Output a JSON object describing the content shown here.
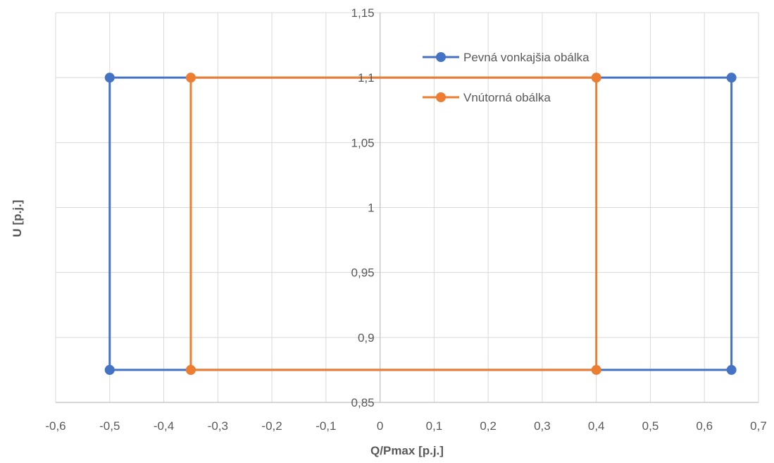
{
  "chart_data": {
    "type": "scatter",
    "title": "",
    "xlabel": "Q/Pmax [p.j.]",
    "ylabel": "U [p.j.]",
    "xlim": [
      -0.6,
      0.7
    ],
    "ylim": [
      0.85,
      1.15
    ],
    "x_ticks": [
      -0.6,
      -0.5,
      -0.4,
      -0.3,
      -0.2,
      -0.1,
      0,
      0.1,
      0.2,
      0.3,
      0.4,
      0.5,
      0.6,
      0.7
    ],
    "x_tick_labels": [
      "-0,6",
      "-0,5",
      "-0,4",
      "-0,3",
      "-0,2",
      "-0,1",
      "0",
      "0,1",
      "0,2",
      "0,3",
      "0,4",
      "0,5",
      "0,6",
      "0,7"
    ],
    "y_ticks": [
      0.85,
      0.9,
      0.95,
      1.0,
      1.05,
      1.1,
      1.15
    ],
    "y_tick_labels": [
      "0,85",
      "0,9",
      "0,95",
      "1",
      "1,05",
      "1,1",
      "1,15"
    ],
    "grid": true,
    "legend_position": "top-right",
    "series": [
      {
        "name": "Pevná vonkajšia obálka",
        "color": "#4472C4",
        "points": [
          [
            -0.5,
            0.875
          ],
          [
            -0.5,
            1.1
          ],
          [
            0.65,
            1.1
          ],
          [
            0.65,
            0.875
          ],
          [
            -0.5,
            0.875
          ]
        ]
      },
      {
        "name": "Vnútorná obálka",
        "color": "#ED7D31",
        "points": [
          [
            -0.35,
            0.875
          ],
          [
            -0.35,
            1.1
          ],
          [
            0.4,
            1.1
          ],
          [
            0.4,
            0.875
          ],
          [
            -0.35,
            0.875
          ]
        ]
      }
    ]
  }
}
